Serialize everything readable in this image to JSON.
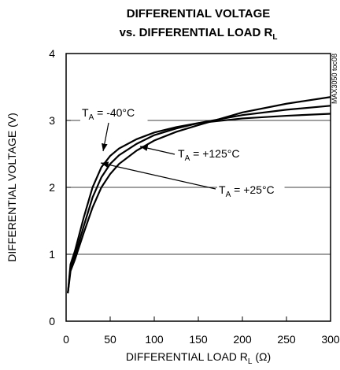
{
  "chart_data": {
    "type": "line",
    "title": {
      "line1": "DIFFERENTIAL VOLTAGE",
      "line2": "vs. DIFFERENTIAL LOAD R",
      "line2_subscript": "L"
    },
    "x_label": {
      "text": "DIFFERENTIAL LOAD R",
      "subscript": "L",
      "suffix": " (Ω)"
    },
    "y_label": "DIFFERENTIAL VOLTAGE (V)",
    "side_note": "MAX3050 toc08",
    "x": [
      2,
      5,
      10,
      20,
      30,
      40,
      50,
      60,
      80,
      100,
      125,
      150,
      200,
      250,
      300
    ],
    "series": [
      {
        "color": "#000000",
        "values": [
          0.42,
          0.85,
          1.05,
          1.55,
          2.0,
          2.3,
          2.47,
          2.58,
          2.72,
          2.82,
          2.9,
          2.96,
          3.03,
          3.07,
          3.1
        ]
      },
      {
        "color": "#000000",
        "values": [
          0.42,
          0.8,
          0.98,
          1.42,
          1.85,
          2.15,
          2.35,
          2.48,
          2.65,
          2.78,
          2.88,
          2.96,
          3.08,
          3.16,
          3.22
        ]
      },
      {
        "color": "#000000",
        "values": [
          0.42,
          0.75,
          0.92,
          1.32,
          1.7,
          2.0,
          2.2,
          2.35,
          2.55,
          2.7,
          2.83,
          2.93,
          3.12,
          3.25,
          3.35
        ]
      }
    ],
    "annotations": [
      {
        "prefix": "T",
        "subscript": "A",
        "text": " = -40°C"
      },
      {
        "prefix": "T",
        "subscript": "A",
        "text": " = +125°C"
      },
      {
        "prefix": "T",
        "subscript": "A",
        "text": " = +25°C"
      }
    ],
    "xlim": [
      0,
      300
    ],
    "xticks": [
      0,
      50,
      100,
      150,
      200,
      250,
      300
    ],
    "ylim": [
      0,
      4
    ],
    "yticks": [
      0,
      1,
      2,
      3,
      4
    ],
    "grid": "y"
  }
}
